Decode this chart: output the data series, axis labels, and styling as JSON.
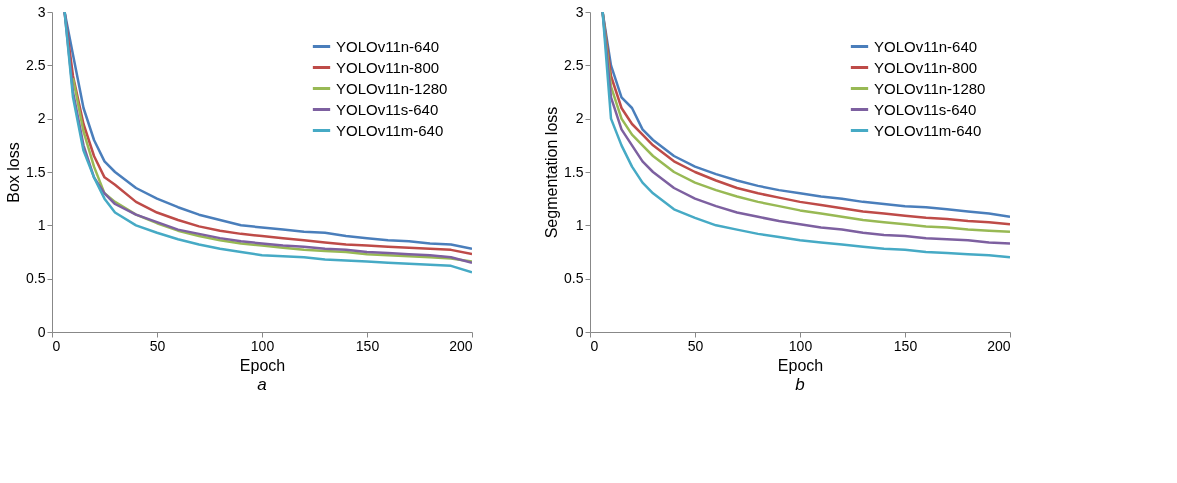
{
  "chart_data": [
    {
      "type": "line",
      "xlabel": "Epoch",
      "ylabel": "Box loss",
      "annotations": [
        "a"
      ],
      "xlim": [
        0,
        200
      ],
      "ylim": [
        0,
        3
      ],
      "xticks": [
        0,
        50,
        100,
        150,
        200
      ],
      "yticks": [
        0,
        0.5,
        1,
        1.5,
        2,
        2.5,
        3
      ],
      "grid": false,
      "legend": "top right",
      "marker": "none",
      "line_style": "solid",
      "x": [
        6,
        10,
        15,
        20,
        25,
        30,
        40,
        50,
        60,
        70,
        80,
        90,
        100,
        110,
        120,
        130,
        140,
        150,
        160,
        170,
        180,
        190,
        200
      ],
      "series": [
        {
          "name": "YOLOv11n-640",
          "color": "#4a7ebb",
          "values": [
            3,
            2.6,
            2.1,
            1.8,
            1.6,
            1.5,
            1.35,
            1.25,
            1.17,
            1.1,
            1.05,
            1.0,
            0.98,
            0.96,
            0.94,
            0.93,
            0.9,
            0.88,
            0.86,
            0.85,
            0.83,
            0.82,
            0.78
          ]
        },
        {
          "name": "YOLOv11n-800",
          "color": "#be4b48",
          "values": [
            3,
            2.4,
            1.95,
            1.65,
            1.45,
            1.38,
            1.22,
            1.12,
            1.05,
            0.99,
            0.95,
            0.92,
            0.9,
            0.88,
            0.86,
            0.84,
            0.82,
            0.81,
            0.8,
            0.79,
            0.78,
            0.77,
            0.73
          ]
        },
        {
          "name": "YOLOv11n-1280",
          "color": "#98b954",
          "values": [
            null,
            2.38,
            1.88,
            1.55,
            1.3,
            1.22,
            1.1,
            1.02,
            0.95,
            0.9,
            0.86,
            0.83,
            0.81,
            0.79,
            0.77,
            0.76,
            0.75,
            0.73,
            0.72,
            0.71,
            0.7,
            0.69,
            0.66
          ]
        },
        {
          "name": "YOLOv11s-640",
          "color": "#7d60a0",
          "values": [
            3,
            2.25,
            1.75,
            1.45,
            1.3,
            1.2,
            1.1,
            1.03,
            0.96,
            0.92,
            0.88,
            0.85,
            0.83,
            0.81,
            0.8,
            0.78,
            0.77,
            0.75,
            0.74,
            0.73,
            0.72,
            0.7,
            0.65
          ]
        },
        {
          "name": "YOLOv11m-640",
          "color": "#46aac5",
          "values": [
            3,
            2.2,
            1.7,
            1.45,
            1.25,
            1.12,
            1.0,
            0.93,
            0.87,
            0.82,
            0.78,
            0.75,
            0.72,
            0.71,
            0.7,
            0.68,
            0.67,
            0.66,
            0.65,
            0.64,
            0.63,
            0.62,
            0.56
          ]
        }
      ]
    },
    {
      "type": "line",
      "xlabel": "Epoch",
      "ylabel": "Segmentation loss",
      "annotations": [
        "b"
      ],
      "xlim": [
        0,
        200
      ],
      "ylim": [
        0,
        3
      ],
      "xticks": [
        0,
        50,
        100,
        150,
        200
      ],
      "yticks": [
        0,
        0.5,
        1,
        1.5,
        2,
        2.5,
        3
      ],
      "grid": false,
      "legend": "top right",
      "marker": "none",
      "line_style": "solid",
      "x": [
        6,
        10,
        15,
        20,
        25,
        30,
        40,
        50,
        60,
        70,
        80,
        90,
        100,
        110,
        120,
        130,
        140,
        150,
        160,
        170,
        180,
        190,
        200
      ],
      "series": [
        {
          "name": "YOLOv11n-640",
          "color": "#4a7ebb",
          "values": [
            3,
            2.5,
            2.2,
            2.1,
            1.9,
            1.8,
            1.65,
            1.55,
            1.48,
            1.42,
            1.37,
            1.33,
            1.3,
            1.27,
            1.25,
            1.22,
            1.2,
            1.18,
            1.17,
            1.15,
            1.13,
            1.11,
            1.08
          ]
        },
        {
          "name": "YOLOv11n-800",
          "color": "#be4b48",
          "values": [
            3,
            2.4,
            2.1,
            1.95,
            1.85,
            1.75,
            1.6,
            1.5,
            1.42,
            1.35,
            1.3,
            1.26,
            1.22,
            1.19,
            1.16,
            1.13,
            1.11,
            1.09,
            1.07,
            1.06,
            1.04,
            1.03,
            1.01
          ]
        },
        {
          "name": "YOLOv11n-1280",
          "color": "#98b954",
          "values": [
            3,
            2.3,
            2.0,
            1.85,
            1.75,
            1.65,
            1.5,
            1.4,
            1.33,
            1.27,
            1.22,
            1.18,
            1.14,
            1.11,
            1.08,
            1.05,
            1.03,
            1.01,
            0.99,
            0.98,
            0.96,
            0.95,
            0.94
          ]
        },
        {
          "name": "YOLOv11s-640",
          "color": "#7d60a0",
          "values": [
            3,
            2.2,
            1.9,
            1.75,
            1.6,
            1.5,
            1.35,
            1.25,
            1.18,
            1.12,
            1.08,
            1.04,
            1.01,
            0.98,
            0.96,
            0.93,
            0.91,
            0.9,
            0.88,
            0.87,
            0.86,
            0.84,
            0.83
          ]
        },
        {
          "name": "YOLOv11m-640",
          "color": "#46aac5",
          "values": [
            3,
            2.0,
            1.75,
            1.55,
            1.4,
            1.3,
            1.15,
            1.07,
            1.0,
            0.96,
            0.92,
            0.89,
            0.86,
            0.84,
            0.82,
            0.8,
            0.78,
            0.77,
            0.75,
            0.74,
            0.73,
            0.72,
            0.7
          ]
        }
      ]
    }
  ]
}
